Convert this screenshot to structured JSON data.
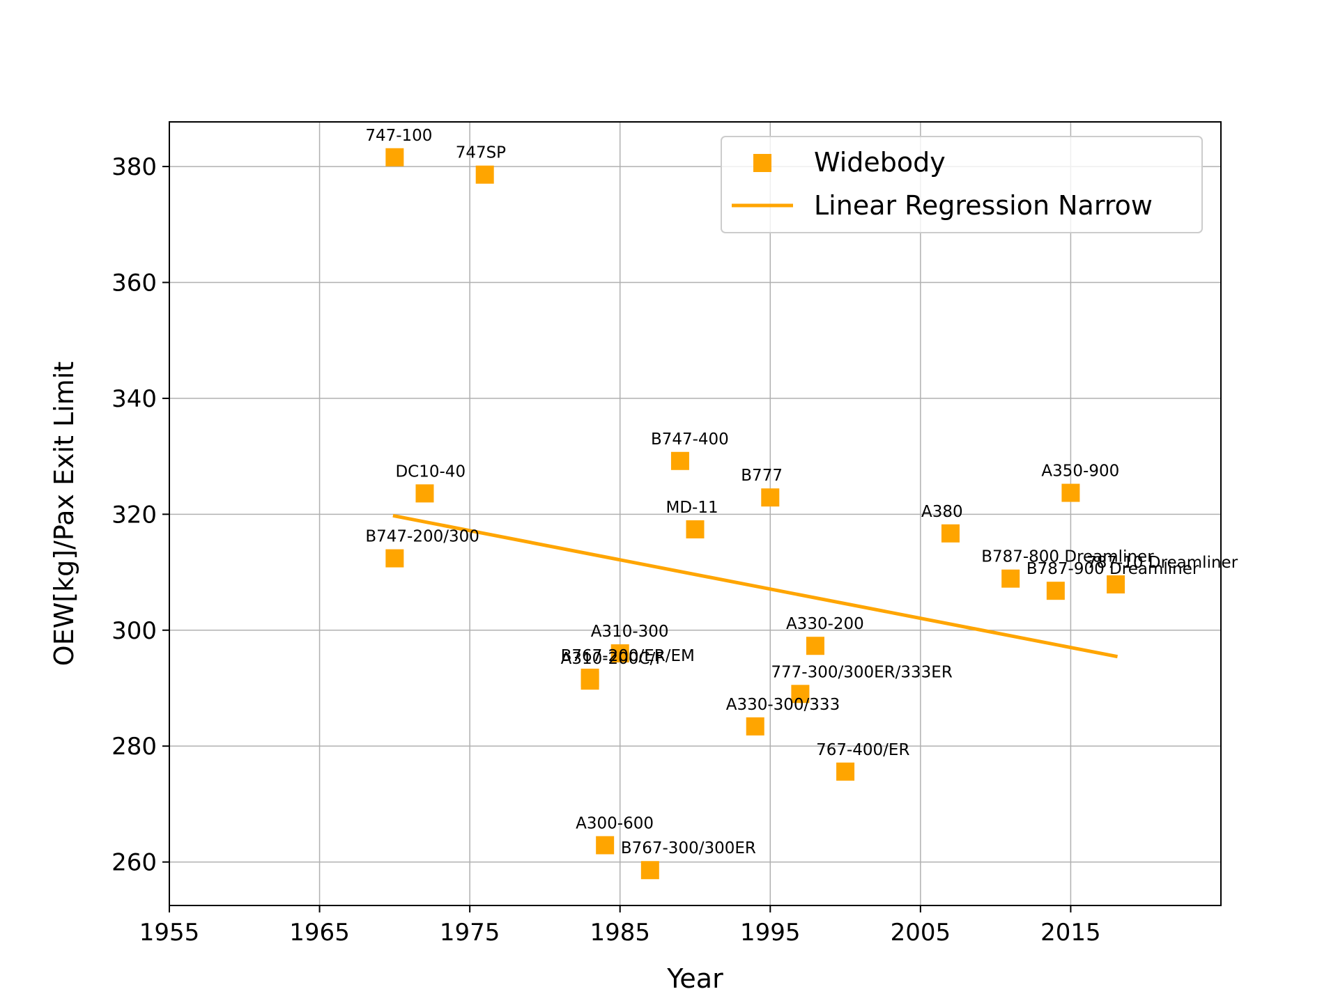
{
  "chart_data": {
    "type": "scatter",
    "xlabel": "Year",
    "ylabel": "OEW[kg]/Pax Exit Limit",
    "xlim": [
      1955,
      2025
    ],
    "ylim": [
      252.5,
      387.7
    ],
    "xticks": [
      1955,
      1965,
      1975,
      1985,
      1995,
      2005,
      2015
    ],
    "yticks": [
      260,
      280,
      300,
      320,
      340,
      360,
      380
    ],
    "grid": true,
    "legend_position": "top-right",
    "colors": {
      "accent": "#ffa500",
      "grid": "#b0b0b0",
      "axes": "#000000"
    },
    "series": [
      {
        "name": "Widebody",
        "kind": "scatter",
        "marker": "square",
        "points": [
          {
            "label": "747-100",
            "x": 1970,
            "y": 381.6
          },
          {
            "label": "747SP",
            "x": 1976,
            "y": 378.6
          },
          {
            "label": "DC10-40",
            "x": 1972,
            "y": 323.6
          },
          {
            "label": "B747-200/300",
            "x": 1970,
            "y": 312.4
          },
          {
            "label": "B747-400",
            "x": 1989,
            "y": 329.2
          },
          {
            "label": "B777",
            "x": 1995,
            "y": 322.9
          },
          {
            "label": "MD-11",
            "x": 1990,
            "y": 317.4
          },
          {
            "label": "A310-300",
            "x": 1985,
            "y": 296.0
          },
          {
            "label": "B767-200/ER/EM",
            "x": 1983,
            "y": 291.8
          },
          {
            "label": "A310-200C/F",
            "x": 1983,
            "y": 291.3
          },
          {
            "label": "A330-200",
            "x": 1998,
            "y": 297.3
          },
          {
            "label": "777-300/300ER/333ER",
            "x": 1997,
            "y": 289.0
          },
          {
            "label": "A330-300/333",
            "x": 1994,
            "y": 283.4
          },
          {
            "label": "767-400/ER",
            "x": 2000,
            "y": 275.6
          },
          {
            "label": "A300-600",
            "x": 1984,
            "y": 262.9
          },
          {
            "label": "B767-300/300ER",
            "x": 1987,
            "y": 258.6
          },
          {
            "label": "A380",
            "x": 2007,
            "y": 316.7
          },
          {
            "label": "A350-900",
            "x": 2015,
            "y": 323.7
          },
          {
            "label": "B787-800 Dreamliner",
            "x": 2011,
            "y": 308.9
          },
          {
            "label": "B787-900 Dreamliner",
            "x": 2014,
            "y": 306.8
          },
          {
            "label": "787-10 Dreamliner",
            "x": 2018,
            "y": 307.9
          }
        ]
      },
      {
        "name": "Linear Regression Narrow",
        "kind": "line",
        "x": [
          1970,
          2018
        ],
        "y": [
          319.7,
          295.5
        ]
      }
    ]
  }
}
